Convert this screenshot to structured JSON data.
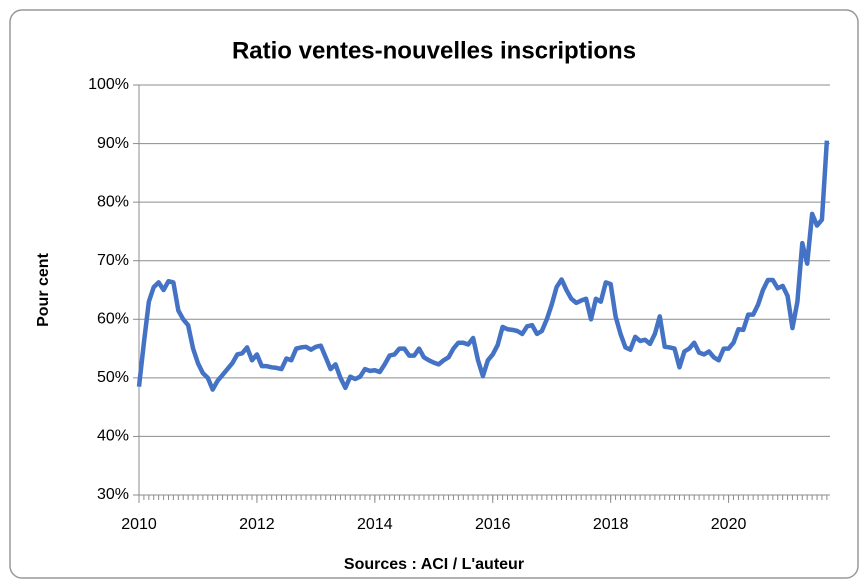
{
  "chart_data": {
    "type": "line",
    "title": "Ratio ventes-nouvelles inscriptions",
    "ylabel": "Pour cent",
    "xlabel": "Sources : ACI / L'auteur",
    "x": [
      2010,
      2010.083,
      2010.167,
      2010.25,
      2010.333,
      2010.417,
      2010.5,
      2010.583,
      2010.667,
      2010.75,
      2010.833,
      2010.917,
      2011,
      2011.083,
      2011.167,
      2011.25,
      2011.333,
      2011.417,
      2011.5,
      2011.583,
      2011.667,
      2011.75,
      2011.833,
      2011.917,
      2012,
      2012.083,
      2012.167,
      2012.25,
      2012.333,
      2012.417,
      2012.5,
      2012.583,
      2012.667,
      2012.75,
      2012.833,
      2012.917,
      2013,
      2013.083,
      2013.167,
      2013.25,
      2013.333,
      2013.417,
      2013.5,
      2013.583,
      2013.667,
      2013.75,
      2013.833,
      2013.917,
      2014,
      2014.083,
      2014.167,
      2014.25,
      2014.333,
      2014.417,
      2014.5,
      2014.583,
      2014.667,
      2014.75,
      2014.833,
      2014.917,
      2015,
      2015.083,
      2015.167,
      2015.25,
      2015.333,
      2015.417,
      2015.5,
      2015.583,
      2015.667,
      2015.75,
      2015.833,
      2015.917,
      2016,
      2016.083,
      2016.167,
      2016.25,
      2016.333,
      2016.417,
      2016.5,
      2016.583,
      2016.667,
      2016.75,
      2016.833,
      2016.917,
      2017,
      2017.083,
      2017.167,
      2017.25,
      2017.333,
      2017.417,
      2017.5,
      2017.583,
      2017.667,
      2017.75,
      2017.833,
      2017.917,
      2018,
      2018.083,
      2018.167,
      2018.25,
      2018.333,
      2018.417,
      2018.5,
      2018.583,
      2018.667,
      2018.75,
      2018.833,
      2018.917,
      2019,
      2019.083,
      2019.167,
      2019.25,
      2019.333,
      2019.417,
      2019.5,
      2019.583,
      2019.667,
      2019.75,
      2019.833,
      2019.917,
      2020,
      2020.083,
      2020.167,
      2020.25,
      2020.333,
      2020.417,
      2020.5,
      2020.583,
      2020.667,
      2020.75,
      2020.833,
      2020.917,
      2021,
      2021.083,
      2021.167,
      2021.25,
      2021.333,
      2021.417,
      2021.5,
      2021.583,
      2021.667
    ],
    "series": [
      {
        "name": "Ratio",
        "color": "#4472c4",
        "values": [
          48.5,
          56,
          63,
          65.5,
          66.3,
          65,
          66.5,
          66.3,
          61.5,
          60,
          59,
          55,
          52.5,
          50.8,
          50,
          48,
          49.5,
          50.5,
          51.5,
          52.5,
          54,
          54.2,
          55.2,
          53,
          54,
          52,
          52,
          51.8,
          51.7,
          51.5,
          53.3,
          53,
          55,
          55.2,
          55.3,
          54.8,
          55.3,
          55.5,
          53.5,
          51.5,
          52.3,
          50,
          48.3,
          50.2,
          49.8,
          50.2,
          51.5,
          51.2,
          51.3,
          51,
          52.3,
          53.8,
          54,
          55,
          55,
          53.8,
          53.8,
          55,
          53.5,
          53,
          52.6,
          52.3,
          53,
          53.5,
          55,
          56,
          56,
          55.7,
          56.8,
          53,
          50.3,
          53,
          54,
          55.6,
          58.7,
          58.3,
          58.2,
          58,
          57.5,
          58.8,
          59,
          57.5,
          58,
          60,
          62.5,
          65.5,
          66.8,
          65,
          63.5,
          62.8,
          63.2,
          63.5,
          60,
          63.5,
          63,
          66.3,
          66,
          60.5,
          57.5,
          55.2,
          54.8,
          57,
          56.3,
          56.5,
          55.8,
          57.5,
          60.5,
          55.3,
          55.2,
          55,
          51.8,
          54.5,
          55,
          56,
          54.3,
          54,
          54.5,
          53.5,
          53,
          55,
          55,
          56,
          58.3,
          58.2,
          60.8,
          60.8,
          62.5,
          65,
          66.7,
          66.7,
          65.3,
          65.7,
          64,
          58.5,
          63,
          73,
          69.5,
          78,
          76,
          77,
          90.5
        ]
      }
    ],
    "xlim": [
      2010,
      2021.72
    ],
    "xticks": [
      2010,
      2012,
      2014,
      2016,
      2018,
      2020
    ],
    "ylim": [
      30,
      100
    ],
    "yticks": [
      {
        "value": 30,
        "label": "30%"
      },
      {
        "value": 40,
        "label": "40%"
      },
      {
        "value": 50,
        "label": "50%"
      },
      {
        "value": 60,
        "label": "60%"
      },
      {
        "value": 70,
        "label": "70%"
      },
      {
        "value": 80,
        "label": "80%"
      },
      {
        "value": 90,
        "label": "90%"
      },
      {
        "value": 100,
        "label": "100%"
      }
    ],
    "grid": true
  }
}
